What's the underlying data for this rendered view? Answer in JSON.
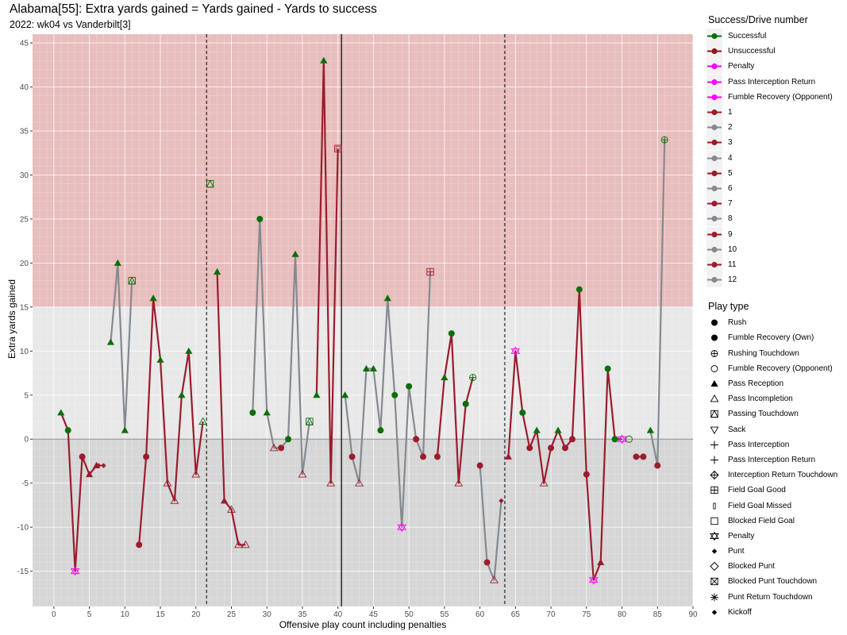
{
  "chart_data": {
    "type": "line",
    "title": "Alabama[55]: Extra yards gained = Yards gained - Yards to success",
    "subtitle": "2022: wk04 vs Vanderbilt[3]",
    "xlabel": "Offensive play count including penalties",
    "ylabel": "Extra yards gained",
    "xlim": [
      -3,
      90
    ],
    "ylim": [
      -19,
      46
    ],
    "x_ticks": [
      0,
      5,
      10,
      15,
      20,
      25,
      30,
      35,
      40,
      45,
      50,
      55,
      60,
      65,
      70,
      75,
      80,
      85,
      90
    ],
    "x_tick_labels": [
      "0",
      "5",
      "10",
      "15",
      "20",
      "25",
      "30",
      "35",
      "40",
      "45",
      "50",
      "55",
      "60",
      "65",
      "70",
      "75",
      "80",
      "85",
      "90"
    ],
    "y_ticks": [
      -15,
      -10,
      -5,
      0,
      5,
      10,
      15,
      20,
      25,
      30,
      35,
      40,
      45
    ],
    "y_tick_labels": [
      "-15",
      "-10",
      "-5",
      "0",
      "5",
      "10",
      "15",
      "20",
      "25",
      "30",
      "35",
      "40",
      "45"
    ],
    "bands": [
      {
        "from": 15,
        "to": 46,
        "color": "#e8bdbd"
      },
      {
        "from": -19,
        "to": 0,
        "color": "#d6d6d6"
      },
      {
        "from": 0,
        "to": 15,
        "color": "#e8e8e8"
      }
    ],
    "vlines": [
      {
        "x": 21.5,
        "style": "dashed"
      },
      {
        "x": 40.5,
        "style": "solid"
      },
      {
        "x": 63.5,
        "style": "dashed"
      }
    ],
    "hline": 0,
    "colors": {
      "successful": "#0a6e0a",
      "unsuccessful": "#9b1c2c",
      "penalty": "#ff00ff",
      "drive_odd": "#9b1c2c",
      "drive_even": "#848a90"
    },
    "series": [
      {
        "name": "1",
        "color": "drive_odd",
        "points": [
          {
            "x": 1,
            "y": 3,
            "shape": "tri",
            "outcome": "s"
          },
          {
            "x": 2,
            "y": 1,
            "shape": "circle",
            "outcome": "s"
          },
          {
            "x": 3,
            "y": -15,
            "shape": "penalty",
            "outcome": "p"
          },
          {
            "x": 4,
            "y": -2,
            "shape": "circle",
            "outcome": "u"
          },
          {
            "x": 5,
            "y": -4,
            "shape": "tri",
            "outcome": "u"
          },
          {
            "x": 6,
            "y": -3,
            "shape": "tri",
            "outcome": "u"
          }
        ]
      },
      {
        "name": "2",
        "color": "drive_even",
        "points": [
          {
            "x": 6.3,
            "y": -3,
            "shape": "diamond",
            "outcome": "u"
          },
          {
            "x": 7,
            "y": -3,
            "shape": "diamond",
            "outcome": "u"
          }
        ]
      },
      {
        "name": "4",
        "color": "drive_even",
        "points": [
          {
            "x": 8,
            "y": 11,
            "shape": "tri",
            "outcome": "s"
          },
          {
            "x": 9,
            "y": 20,
            "shape": "tri",
            "outcome": "s"
          },
          {
            "x": 10,
            "y": 1,
            "shape": "tri",
            "outcome": "s"
          },
          {
            "x": 11,
            "y": 18,
            "shape": "passtd",
            "outcome": "s"
          }
        ]
      },
      {
        "name": "5",
        "color": "drive_odd",
        "points": [
          {
            "x": 12,
            "y": -12,
            "shape": "circle",
            "outcome": "u"
          },
          {
            "x": 13,
            "y": -2,
            "shape": "circle",
            "outcome": "u"
          },
          {
            "x": 14,
            "y": 16,
            "shape": "tri",
            "outcome": "s"
          },
          {
            "x": 15,
            "y": 9,
            "shape": "tri",
            "outcome": "s"
          },
          {
            "x": 16,
            "y": -5,
            "shape": "tri_open",
            "outcome": "u"
          },
          {
            "x": 17,
            "y": -7,
            "shape": "tri_open",
            "outcome": "u"
          },
          {
            "x": 18,
            "y": 5,
            "shape": "tri",
            "outcome": "s"
          },
          {
            "x": 19,
            "y": 10,
            "shape": "tri",
            "outcome": "s"
          },
          {
            "x": 20,
            "y": -4,
            "shape": "tri_open",
            "outcome": "u"
          },
          {
            "x": 21,
            "y": 2,
            "shape": "tri_open",
            "outcome": "s"
          }
        ]
      },
      {
        "name": "6",
        "color": "drive_even",
        "points": [
          {
            "x": 22,
            "y": 29,
            "shape": "passtd",
            "outcome": "s"
          }
        ]
      },
      {
        "name": "7",
        "color": "drive_odd",
        "points": [
          {
            "x": 23,
            "y": 19,
            "shape": "tri",
            "outcome": "s"
          },
          {
            "x": 24,
            "y": -7,
            "shape": "tri",
            "outcome": "u"
          },
          {
            "x": 25,
            "y": -8,
            "shape": "tri_open",
            "outcome": "u"
          },
          {
            "x": 26,
            "y": -12,
            "shape": "tri_open",
            "outcome": "u"
          },
          {
            "x": 27,
            "y": -12,
            "shape": "tri_open",
            "outcome": "u"
          }
        ]
      },
      {
        "name": "8",
        "color": "drive_even",
        "points": [
          {
            "x": 28,
            "y": 3,
            "shape": "circle",
            "outcome": "s"
          },
          {
            "x": 29,
            "y": 25,
            "shape": "circle",
            "outcome": "s"
          },
          {
            "x": 30,
            "y": 3,
            "shape": "tri",
            "outcome": "s"
          },
          {
            "x": 31,
            "y": -1,
            "shape": "tri_open",
            "outcome": "u"
          },
          {
            "x": 32,
            "y": -1,
            "shape": "circle",
            "outcome": "u"
          },
          {
            "x": 33,
            "y": 0,
            "shape": "circle",
            "outcome": "s"
          },
          {
            "x": 34,
            "y": 21,
            "shape": "tri",
            "outcome": "s"
          },
          {
            "x": 35,
            "y": -4,
            "shape": "tri_open",
            "outcome": "u"
          },
          {
            "x": 36,
            "y": 2,
            "shape": "passtd",
            "outcome": "s"
          }
        ]
      },
      {
        "name": "9",
        "color": "drive_odd",
        "points": [
          {
            "x": 37,
            "y": 5,
            "shape": "tri",
            "outcome": "s"
          },
          {
            "x": 38,
            "y": 43,
            "shape": "tri",
            "outcome": "s"
          },
          {
            "x": 39,
            "y": -5,
            "shape": "tri_open",
            "outcome": "u"
          },
          {
            "x": 40,
            "y": 33,
            "shape": "fgmiss",
            "outcome": "u"
          }
        ]
      },
      {
        "name": "10",
        "color": "drive_even",
        "points": [
          {
            "x": 41,
            "y": 5,
            "shape": "tri",
            "outcome": "s"
          },
          {
            "x": 42,
            "y": -2,
            "shape": "circle",
            "outcome": "u"
          },
          {
            "x": 43,
            "y": -5,
            "shape": "tri_open",
            "outcome": "u"
          },
          {
            "x": 44,
            "y": 8,
            "shape": "tri",
            "outcome": "s"
          },
          {
            "x": 45,
            "y": 8,
            "shape": "tri",
            "outcome": "s"
          },
          {
            "x": 46,
            "y": 1,
            "shape": "circle",
            "outcome": "s"
          },
          {
            "x": 47,
            "y": 16,
            "shape": "tri",
            "outcome": "s"
          },
          {
            "x": 48,
            "y": 5,
            "shape": "circle",
            "outcome": "s"
          },
          {
            "x": 49,
            "y": -10,
            "shape": "penalty",
            "outcome": "p"
          },
          {
            "x": 50,
            "y": 6,
            "shape": "circle",
            "outcome": "s"
          },
          {
            "x": 51,
            "y": 0,
            "shape": "circle",
            "outcome": "u"
          },
          {
            "x": 52,
            "y": -2,
            "shape": "circle",
            "outcome": "u"
          },
          {
            "x": 53,
            "y": 19,
            "shape": "fggood",
            "outcome": "u"
          }
        ]
      },
      {
        "name": "11",
        "color": "drive_odd",
        "points": [
          {
            "x": 54,
            "y": -2,
            "shape": "circle",
            "outcome": "u"
          },
          {
            "x": 55,
            "y": 7,
            "shape": "tri",
            "outcome": "s"
          },
          {
            "x": 56,
            "y": 12,
            "shape": "circle",
            "outcome": "s"
          },
          {
            "x": 57,
            "y": -5,
            "shape": "tri_open",
            "outcome": "u"
          },
          {
            "x": 58,
            "y": 4,
            "shape": "circle",
            "outcome": "s"
          },
          {
            "x": 59,
            "y": 7,
            "shape": "rushtd",
            "outcome": "s"
          }
        ]
      },
      {
        "name": "12",
        "color": "drive_even",
        "points": [
          {
            "x": 60,
            "y": -3,
            "shape": "circle",
            "outcome": "u"
          },
          {
            "x": 61,
            "y": -14,
            "shape": "circle",
            "outcome": "u"
          },
          {
            "x": 62,
            "y": -16,
            "shape": "tri_open",
            "outcome": "u"
          },
          {
            "x": 63,
            "y": -7,
            "shape": "diamond",
            "outcome": "u"
          }
        ]
      },
      {
        "name": "3",
        "color": "drive_odd",
        "points": [
          {
            "x": 64,
            "y": -2,
            "shape": "tri",
            "outcome": "u"
          },
          {
            "x": 65,
            "y": 10,
            "shape": "penalty",
            "outcome": "p"
          },
          {
            "x": 66,
            "y": 3,
            "shape": "circle",
            "outcome": "s"
          },
          {
            "x": 67,
            "y": -1,
            "shape": "circle",
            "outcome": "u"
          },
          {
            "x": 68,
            "y": 1,
            "shape": "tri",
            "outcome": "s"
          },
          {
            "x": 69,
            "y": -5,
            "shape": "tri_open",
            "outcome": "u"
          },
          {
            "x": 70,
            "y": -1,
            "shape": "circle",
            "outcome": "u"
          },
          {
            "x": 71,
            "y": 1,
            "shape": "tri",
            "outcome": "s"
          },
          {
            "x": 72,
            "y": -1,
            "shape": "circle",
            "outcome": "u"
          },
          {
            "x": 73,
            "y": 0,
            "shape": "circle",
            "outcome": "u"
          },
          {
            "x": 74,
            "y": 17,
            "shape": "circle",
            "outcome": "s"
          },
          {
            "x": 75,
            "y": -4,
            "shape": "circle",
            "outcome": "u"
          },
          {
            "x": 76,
            "y": -16,
            "shape": "penalty",
            "outcome": "p"
          },
          {
            "x": 77,
            "y": -14,
            "shape": "tri",
            "outcome": "u"
          },
          {
            "x": 78,
            "y": 8,
            "shape": "circle",
            "outcome": "s"
          },
          {
            "x": 79,
            "y": 0,
            "shape": "circle",
            "outcome": "s"
          },
          {
            "x": 80,
            "y": 0,
            "shape": "penalty",
            "outcome": "p"
          }
        ]
      },
      {
        "name": "2b",
        "color": "drive_even",
        "points": [
          {
            "x": 81,
            "y": 0,
            "shape": "circle_open",
            "outcome": "s"
          }
        ]
      },
      {
        "name": "1b",
        "color": "drive_odd",
        "points": [
          {
            "x": 82,
            "y": -2,
            "shape": "circle",
            "outcome": "u"
          },
          {
            "x": 83,
            "y": -2,
            "shape": "circle",
            "outcome": "u"
          }
        ]
      },
      {
        "name": "12b",
        "color": "drive_even",
        "points": [
          {
            "x": 84,
            "y": 1,
            "shape": "tri",
            "outcome": "s"
          },
          {
            "x": 85,
            "y": -3,
            "shape": "circle",
            "outcome": "u"
          },
          {
            "x": 86,
            "y": 34,
            "shape": "rushtd",
            "outcome": "s"
          }
        ]
      }
    ],
    "legend_success": {
      "title": "Success/Drive number",
      "items": [
        {
          "label": "Successful",
          "color": "#0a6e0a"
        },
        {
          "label": "Unsuccessful",
          "color": "#8b1a1a"
        },
        {
          "label": "Penalty",
          "color": "#ff00ff"
        },
        {
          "label": "Pass Interception Return",
          "color": "#ff00ff"
        },
        {
          "label": "Fumble Recovery (Opponent)",
          "color": "#ff00ff"
        },
        {
          "label": "1",
          "color": "#9b1c2c"
        },
        {
          "label": "2",
          "color": "#848a90"
        },
        {
          "label": "3",
          "color": "#9b1c2c"
        },
        {
          "label": "4",
          "color": "#848a90"
        },
        {
          "label": "5",
          "color": "#9b1c2c"
        },
        {
          "label": "6",
          "color": "#848a90"
        },
        {
          "label": "7",
          "color": "#9b1c2c"
        },
        {
          "label": "8",
          "color": "#848a90"
        },
        {
          "label": "9",
          "color": "#9b1c2c"
        },
        {
          "label": "10",
          "color": "#848a90"
        },
        {
          "label": "11",
          "color": "#9b1c2c"
        },
        {
          "label": "12",
          "color": "#848a90"
        }
      ]
    },
    "legend_playtype": {
      "title": "Play type",
      "items": [
        {
          "label": "Rush",
          "shape": "circle"
        },
        {
          "label": "Fumble Recovery (Own)",
          "shape": "circle"
        },
        {
          "label": "Rushing Touchdown",
          "shape": "rushtd"
        },
        {
          "label": "Fumble Recovery (Opponent)",
          "shape": "circle_open"
        },
        {
          "label": "Pass Reception",
          "shape": "tri"
        },
        {
          "label": "Pass Incompletion",
          "shape": "tri_open"
        },
        {
          "label": "Passing Touchdown",
          "shape": "passtd"
        },
        {
          "label": "Sack",
          "shape": "tri_down_open"
        },
        {
          "label": "Pass Interception",
          "shape": "plus"
        },
        {
          "label": "Pass Interception Return",
          "shape": "plus"
        },
        {
          "label": "Interception Return Touchdown",
          "shape": "diamond_plus"
        },
        {
          "label": "Field Goal Good",
          "shape": "fggood"
        },
        {
          "label": "Field Goal Missed",
          "shape": "fgmiss_small"
        },
        {
          "label": "Blocked Field Goal",
          "shape": "square_open"
        },
        {
          "label": "Penalty",
          "shape": "penalty"
        },
        {
          "label": "Punt",
          "shape": "diamond"
        },
        {
          "label": "Blocked Punt",
          "shape": "diamond_open"
        },
        {
          "label": "Blocked Punt Touchdown",
          "shape": "square_x"
        },
        {
          "label": "Punt Return Touchdown",
          "shape": "asterisk"
        },
        {
          "label": "Kickoff",
          "shape": "diamond"
        }
      ]
    }
  }
}
